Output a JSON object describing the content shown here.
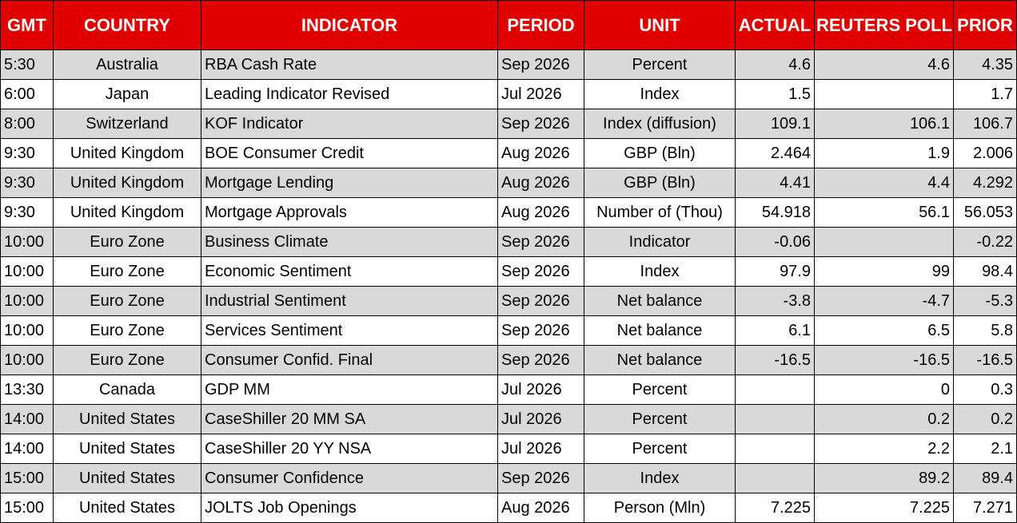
{
  "colors": {
    "header_background": "#e00000",
    "header_text": "#ffffff",
    "shaded_row": "#d9d9d9",
    "plain_row": "#ffffff",
    "grid": "#000000"
  },
  "headers": {
    "gmt": "GMT",
    "country": "COUNTRY",
    "indicator": "INDICATOR",
    "period": "PERIOD",
    "unit": "UNIT",
    "actual": "ACTUAL",
    "poll": "REUTERS POLL",
    "prior": "PRIOR"
  },
  "rows": [
    {
      "gmt": "5:30",
      "country": "Australia",
      "indicator": "RBA Cash Rate",
      "period": "Sep 2026",
      "unit": "Percent",
      "actual": "4.6",
      "poll": "4.6",
      "prior": "4.35"
    },
    {
      "gmt": "6:00",
      "country": "Japan",
      "indicator": "Leading Indicator Revised",
      "period": "Jul 2026",
      "unit": "Index",
      "actual": "1.5",
      "poll": "",
      "prior": "1.7"
    },
    {
      "gmt": "8:00",
      "country": "Switzerland",
      "indicator": "KOF Indicator",
      "period": "Sep 2026",
      "unit": "Index (diffusion)",
      "actual": "109.1",
      "poll": "106.1",
      "prior": "106.7"
    },
    {
      "gmt": "9:30",
      "country": "United Kingdom",
      "indicator": "BOE Consumer Credit",
      "period": "Aug 2026",
      "unit": "GBP (Bln)",
      "actual": "2.464",
      "poll": "1.9",
      "prior": "2.006"
    },
    {
      "gmt": "9:30",
      "country": "United Kingdom",
      "indicator": "Mortgage Lending",
      "period": "Aug 2026",
      "unit": "GBP (Bln)",
      "actual": "4.41",
      "poll": "4.4",
      "prior": "4.292"
    },
    {
      "gmt": "9:30",
      "country": "United Kingdom",
      "indicator": "Mortgage Approvals",
      "period": "Aug 2026",
      "unit": "Number of (Thou)",
      "actual": "54.918",
      "poll": "56.1",
      "prior": "56.053"
    },
    {
      "gmt": "10:00",
      "country": "Euro Zone",
      "indicator": "Business Climate",
      "period": "Sep 2026",
      "unit": "Indicator",
      "actual": "-0.06",
      "poll": "",
      "prior": "-0.22"
    },
    {
      "gmt": "10:00",
      "country": "Euro Zone",
      "indicator": "Economic Sentiment",
      "period": "Sep 2026",
      "unit": "Index",
      "actual": "97.9",
      "poll": "99",
      "prior": "98.4"
    },
    {
      "gmt": "10:00",
      "country": "Euro Zone",
      "indicator": "Industrial Sentiment",
      "period": "Sep 2026",
      "unit": "Net balance",
      "actual": "-3.8",
      "poll": "-4.7",
      "prior": "-5.3"
    },
    {
      "gmt": "10:00",
      "country": "Euro Zone",
      "indicator": "Services Sentiment",
      "period": "Sep 2026",
      "unit": "Net balance",
      "actual": "6.1",
      "poll": "6.5",
      "prior": "5.8"
    },
    {
      "gmt": "10:00",
      "country": "Euro Zone",
      "indicator": "Consumer Confid. Final",
      "period": "Sep 2026",
      "unit": "Net balance",
      "actual": "-16.5",
      "poll": "-16.5",
      "prior": "-16.5"
    },
    {
      "gmt": "13:30",
      "country": "Canada",
      "indicator": "GDP MM",
      "period": "Jul 2026",
      "unit": "Percent",
      "actual": "",
      "poll": "0",
      "prior": "0.3"
    },
    {
      "gmt": "14:00",
      "country": "United States",
      "indicator": "CaseShiller 20 MM SA",
      "period": "Jul 2026",
      "unit": "Percent",
      "actual": "",
      "poll": "0.2",
      "prior": "0.2"
    },
    {
      "gmt": "14:00",
      "country": "United States",
      "indicator": "CaseShiller 20 YY NSA",
      "period": "Jul 2026",
      "unit": "Percent",
      "actual": "",
      "poll": "2.2",
      "prior": "2.1"
    },
    {
      "gmt": "15:00",
      "country": "United States",
      "indicator": "Consumer Confidence",
      "period": "Sep 2026",
      "unit": "Index",
      "actual": "",
      "poll": "89.2",
      "prior": "89.4"
    },
    {
      "gmt": "15:00",
      "country": "United States",
      "indicator": "JOLTS Job Openings",
      "period": "Aug 2026",
      "unit": "Person (Mln)",
      "actual": "7.225",
      "poll": "7.225",
      "prior": "7.271"
    }
  ]
}
